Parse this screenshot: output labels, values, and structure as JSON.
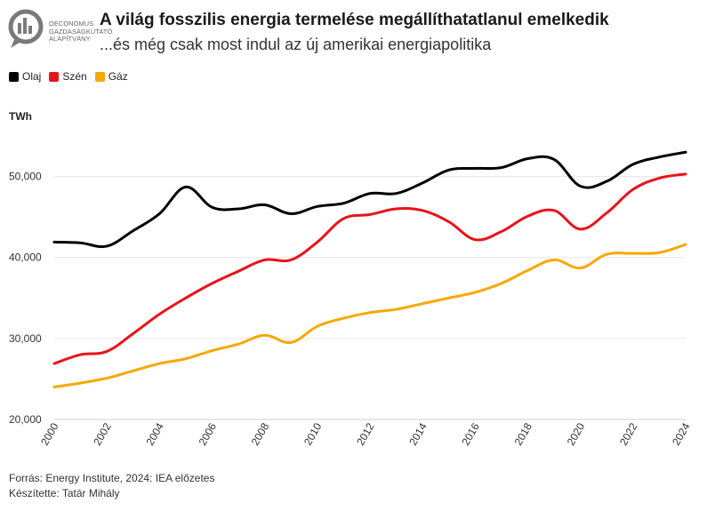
{
  "logo": {
    "lines": [
      "OECONOMUS",
      "GAZDASÁGKUTATÓ",
      "ALAPÍTVÁNY"
    ],
    "icon": "chart-bars-speech-bubble-icon"
  },
  "title": "A világ fosszilis energia termelése megállíthatatlanul emelkedik",
  "subtitle": "...és még csak most indul az új amerikai energiapolitika",
  "footer": {
    "source": "Forrás: Energy Institute, 2024: IEA előzetes",
    "author": "Készítette: Tatár Mihály"
  },
  "chart_data": {
    "type": "line",
    "ylabel": "TWh",
    "ylim": [
      20000,
      55000
    ],
    "yticks": [
      20000,
      30000,
      40000,
      50000
    ],
    "ytick_labels": [
      "20,000",
      "30,000",
      "40,000",
      "50,000"
    ],
    "xticks": [
      2000,
      2002,
      2004,
      2006,
      2008,
      2010,
      2012,
      2014,
      2016,
      2018,
      2020,
      2022,
      2024
    ],
    "grid": "horizontal",
    "legend_position": "top-left",
    "x": [
      2000,
      2001,
      2002,
      2003,
      2004,
      2005,
      2006,
      2007,
      2008,
      2009,
      2010,
      2011,
      2012,
      2013,
      2014,
      2015,
      2016,
      2017,
      2018,
      2019,
      2020,
      2021,
      2022,
      2023,
      2024
    ],
    "series": [
      {
        "name": "Olaj",
        "color": "#000000",
        "values": [
          41900,
          41800,
          41400,
          43300,
          45400,
          48700,
          46200,
          46000,
          46500,
          45400,
          46300,
          46700,
          47900,
          47900,
          49200,
          50800,
          51000,
          51100,
          52200,
          52100,
          48800,
          49400,
          51500,
          52400,
          53000
        ]
      },
      {
        "name": "Szén",
        "color": "#e8131a",
        "values": [
          26900,
          28000,
          28400,
          30600,
          33000,
          35000,
          36800,
          38300,
          39700,
          39700,
          41900,
          44800,
          45300,
          46000,
          45800,
          44400,
          42200,
          43200,
          45100,
          45800,
          43500,
          45500,
          48400,
          49800,
          50300
        ]
      },
      {
        "name": "Gáz",
        "color": "#f5a800",
        "values": [
          24000,
          24500,
          25100,
          26000,
          26900,
          27500,
          28500,
          29300,
          30400,
          29500,
          31500,
          32500,
          33200,
          33600,
          34300,
          35000,
          35700,
          36800,
          38400,
          39700,
          38700,
          40400,
          40500,
          40600,
          41600
        ]
      }
    ]
  }
}
